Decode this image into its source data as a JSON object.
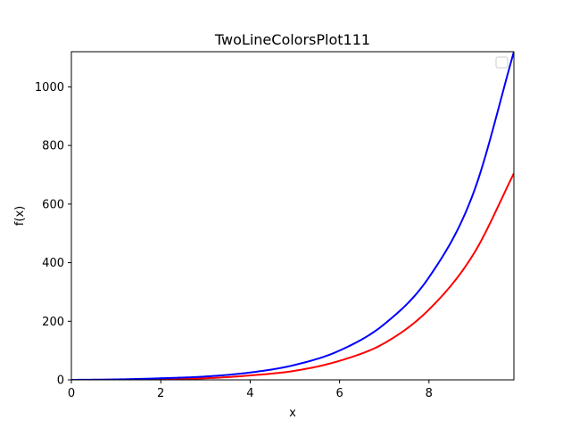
{
  "chart_data": {
    "type": "line",
    "title": "TwoLineColorsPlot111",
    "xlabel": "x",
    "ylabel": "f(x)",
    "xlim": [
      0,
      9.9
    ],
    "ylim": [
      0,
      1120
    ],
    "x_ticks": [
      0,
      2,
      4,
      6,
      8
    ],
    "y_ticks": [
      0,
      200,
      400,
      600,
      800,
      1000
    ],
    "grid": false,
    "legend": {
      "placement": "top-right",
      "entries": []
    },
    "series": [
      {
        "color": "#ff0000",
        "x": [
          0,
          1,
          2,
          3,
          4,
          5,
          6,
          7,
          8,
          9,
          9.9
        ],
        "y": [
          0.0,
          0.5,
          2.5,
          5.5,
          15,
          31,
          65,
          125,
          240,
          430,
          705
        ]
      },
      {
        "color": "#0000ff",
        "x": [
          0,
          1,
          2,
          3,
          4,
          5,
          6,
          7,
          8,
          9,
          9.9
        ],
        "y": [
          0.0,
          1.5,
          5.4,
          11.5,
          25,
          51,
          100,
          190,
          350,
          640,
          1120
        ]
      }
    ]
  }
}
